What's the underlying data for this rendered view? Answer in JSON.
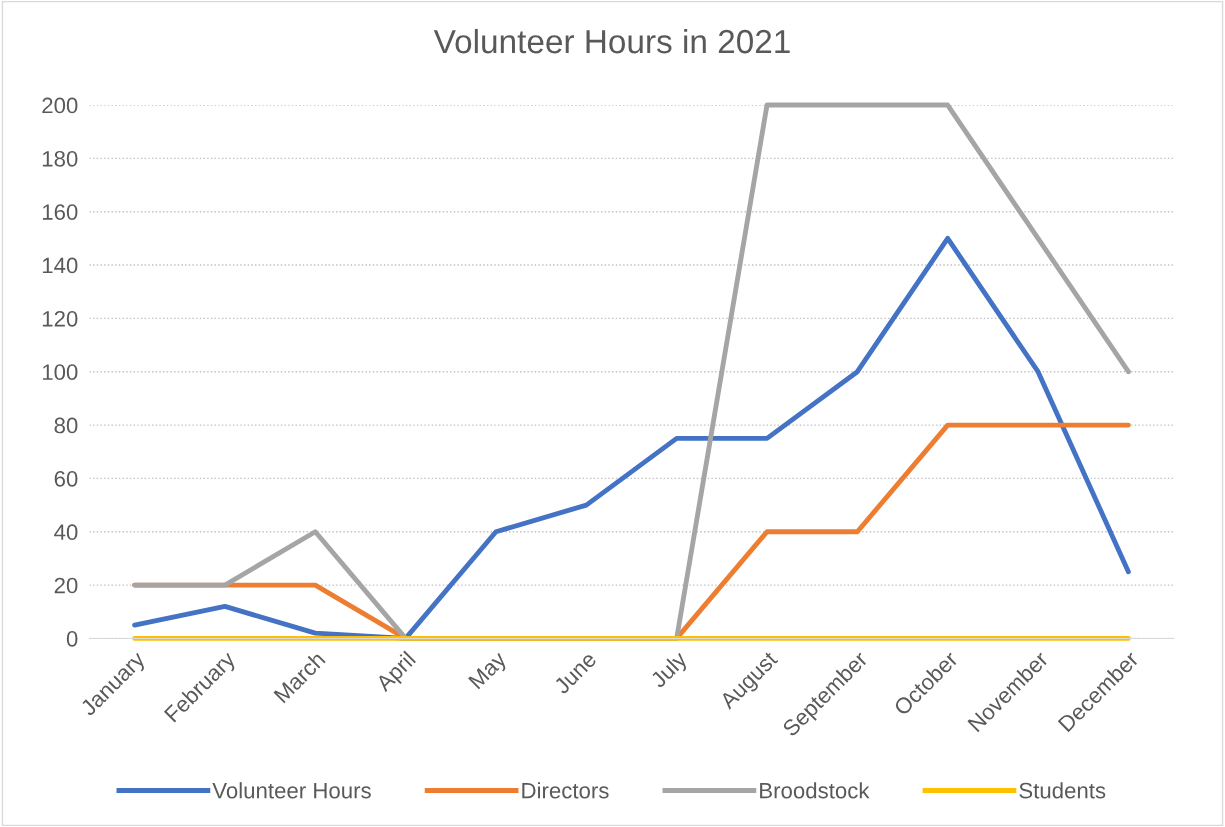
{
  "chart_data": {
    "type": "line",
    "title": "Volunteer Hours in 2021",
    "categories": [
      "January",
      "February",
      "March",
      "April",
      "May",
      "June",
      "July",
      "August",
      "September",
      "October",
      "November",
      "December"
    ],
    "series": [
      {
        "name": "Volunteer Hours",
        "color": "#4472c4",
        "values": [
          5,
          12,
          2,
          0,
          40,
          50,
          75,
          75,
          100,
          150,
          100,
          25
        ]
      },
      {
        "name": "Directors",
        "color": "#ed7d31",
        "values": [
          20,
          20,
          20,
          0,
          0,
          0,
          0,
          40,
          40,
          80,
          80,
          80
        ]
      },
      {
        "name": "Broodstock",
        "color": "#a5a5a5",
        "values": [
          20,
          20,
          40,
          0,
          0,
          0,
          0,
          200,
          200,
          200,
          150,
          100
        ]
      },
      {
        "name": "Students",
        "color": "#ffc000",
        "values": [
          0,
          0,
          0,
          0,
          0,
          0,
          0,
          0,
          0,
          0,
          0,
          0
        ]
      }
    ],
    "ylim": [
      0,
      200
    ],
    "yticks": [
      0,
      20,
      40,
      60,
      80,
      100,
      120,
      140,
      160,
      180,
      200
    ],
    "grid": "y",
    "legend": "bottom",
    "marker": "none",
    "line_style": "solid"
  }
}
